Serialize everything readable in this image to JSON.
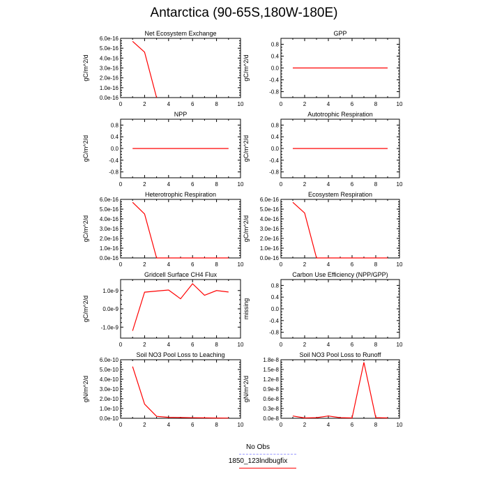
{
  "title": "Antarctica (90-65S,180W-180E)",
  "legend": [
    {
      "label": "No Obs",
      "color": "#9999ff",
      "dash": true
    },
    {
      "label": "1850_123lndbugfix",
      "color": "#ff0000",
      "dash": false
    }
  ],
  "chart_data": [
    {
      "type": "line",
      "title": "Net Ecosystem Exchange",
      "ylabel": "gC/m^2/d",
      "xlim": [
        0,
        10
      ],
      "ylim": [
        0,
        6e-16
      ],
      "xticks": [
        "0",
        "2",
        "4",
        "6",
        "8",
        "10"
      ],
      "yticks": [
        {
          "v": 0,
          "label": "0.0e-16"
        },
        {
          "v": 1e-16,
          "label": "1.0e-16"
        },
        {
          "v": 2e-16,
          "label": "2.0e-16"
        },
        {
          "v": 3e-16,
          "label": "3.0e-16"
        },
        {
          "v": 4e-16,
          "label": "4.0e-16"
        },
        {
          "v": 5e-16,
          "label": "5.0e-16"
        },
        {
          "v": 6e-16,
          "label": "6.0e-16"
        }
      ],
      "series": [
        {
          "x": [
            1,
            2,
            3
          ],
          "y": [
            5.7e-16,
            4.6e-16,
            0
          ]
        }
      ]
    },
    {
      "type": "line",
      "title": "GPP",
      "ylabel": "gC/m^2/d",
      "xlim": [
        0,
        10
      ],
      "ylim": [
        -1,
        1
      ],
      "xticks": [
        "0",
        "2",
        "4",
        "6",
        "8",
        "10"
      ],
      "yticks": [
        {
          "v": 0.8,
          "label": "0.8"
        },
        {
          "v": 0.4,
          "label": "0.4"
        },
        {
          "v": 0,
          "label": "0.0"
        },
        {
          "v": -0.4,
          "label": "-0.4"
        },
        {
          "v": -0.8,
          "label": "-0.8"
        }
      ],
      "series": [
        {
          "x": [
            1,
            9
          ],
          "y": [
            0,
            0
          ]
        }
      ]
    },
    {
      "type": "line",
      "title": "NPP",
      "ylabel": "gC/m^2/d",
      "xlim": [
        0,
        10
      ],
      "ylim": [
        -1,
        1
      ],
      "xticks": [
        "0",
        "2",
        "4",
        "6",
        "8",
        "10"
      ],
      "yticks": [
        {
          "v": 0.8,
          "label": "0.8"
        },
        {
          "v": 0.4,
          "label": "0.4"
        },
        {
          "v": 0,
          "label": "0.0"
        },
        {
          "v": -0.4,
          "label": "-0.4"
        },
        {
          "v": -0.8,
          "label": "-0.8"
        }
      ],
      "series": [
        {
          "x": [
            1,
            9
          ],
          "y": [
            0,
            0
          ]
        }
      ]
    },
    {
      "type": "line",
      "title": "Autotrophic Respiration",
      "ylabel": "gC/m^2/d",
      "xlim": [
        0,
        10
      ],
      "ylim": [
        -1,
        1
      ],
      "xticks": [
        "0",
        "2",
        "4",
        "6",
        "8",
        "10"
      ],
      "yticks": [
        {
          "v": 0.8,
          "label": "0.8"
        },
        {
          "v": 0.4,
          "label": "0.4"
        },
        {
          "v": 0,
          "label": "0.0"
        },
        {
          "v": -0.4,
          "label": "-0.4"
        },
        {
          "v": -0.8,
          "label": "-0.8"
        }
      ],
      "series": [
        {
          "x": [
            1,
            9
          ],
          "y": [
            0,
            0
          ]
        }
      ]
    },
    {
      "type": "line",
      "title": "Heterotrophic Respiration",
      "ylabel": "gC/m^2/d",
      "xlim": [
        0,
        10
      ],
      "ylim": [
        0,
        6e-16
      ],
      "xticks": [
        "0",
        "2",
        "4",
        "6",
        "8",
        "10"
      ],
      "yticks": [
        {
          "v": 0,
          "label": "0.0e-16"
        },
        {
          "v": 1e-16,
          "label": "1.0e-16"
        },
        {
          "v": 2e-16,
          "label": "2.0e-16"
        },
        {
          "v": 3e-16,
          "label": "3.0e-16"
        },
        {
          "v": 4e-16,
          "label": "4.0e-16"
        },
        {
          "v": 5e-16,
          "label": "5.0e-16"
        },
        {
          "v": 6e-16,
          "label": "6.0e-16"
        }
      ],
      "series": [
        {
          "x": [
            1,
            2,
            3,
            4,
            5,
            6,
            7,
            8,
            9
          ],
          "y": [
            5.7e-16,
            4.5e-16,
            0,
            0,
            0,
            0,
            0,
            0,
            0
          ]
        }
      ]
    },
    {
      "type": "line",
      "title": "Ecosystem Respiration",
      "ylabel": "gC/m^2/d",
      "xlim": [
        0,
        10
      ],
      "ylim": [
        0,
        6e-16
      ],
      "xticks": [
        "0",
        "2",
        "4",
        "6",
        "8",
        "10"
      ],
      "yticks": [
        {
          "v": 0,
          "label": "0.0e-16"
        },
        {
          "v": 1e-16,
          "label": "1.0e-16"
        },
        {
          "v": 2e-16,
          "label": "2.0e-16"
        },
        {
          "v": 3e-16,
          "label": "3.0e-16"
        },
        {
          "v": 4e-16,
          "label": "4.0e-16"
        },
        {
          "v": 5e-16,
          "label": "5.0e-16"
        },
        {
          "v": 6e-16,
          "label": "6.0e-16"
        }
      ],
      "series": [
        {
          "x": [
            1,
            2,
            3,
            4,
            5,
            6,
            7,
            8,
            9
          ],
          "y": [
            5.7e-16,
            4.6e-16,
            0,
            0,
            0,
            0,
            0,
            0,
            0
          ]
        }
      ]
    },
    {
      "type": "line",
      "title": "Gridcell Surface CH4 Flux",
      "ylabel": "gC/m^2/d",
      "xlim": [
        0,
        10
      ],
      "ylim": [
        -1.6e-09,
        1.6e-09
      ],
      "xticks": [
        "0",
        "2",
        "4",
        "6",
        "8",
        "10"
      ],
      "yticks": [
        {
          "v": 1e-09,
          "label": "1.0e-9"
        },
        {
          "v": 0,
          "label": "0.0e-9"
        },
        {
          "v": -1e-09,
          "label": "-1.0e-9"
        }
      ],
      "series": [
        {
          "x": [
            1,
            2,
            3,
            4,
            5,
            6,
            7,
            8,
            9
          ],
          "y": [
            -1.2e-09,
            9.1e-10,
            9.7e-10,
            1.03e-09,
            5.5e-10,
            1.37e-09,
            7.4e-10,
            1e-09,
            9.2e-10
          ]
        }
      ]
    },
    {
      "type": "line",
      "title": "Carbon Use Efficiency (NPP/GPP)",
      "ylabel": "missing",
      "xlim": [
        0,
        10
      ],
      "ylim": [
        -1,
        1
      ],
      "xticks": [
        "0",
        "2",
        "4",
        "6",
        "8",
        "10"
      ],
      "yticks": [
        {
          "v": 0.8,
          "label": "0.8"
        },
        {
          "v": 0.4,
          "label": "0.4"
        },
        {
          "v": 0,
          "label": "0.0"
        },
        {
          "v": -0.4,
          "label": "-0.4"
        },
        {
          "v": -0.8,
          "label": "-0.8"
        }
      ],
      "series": []
    },
    {
      "type": "line",
      "title": "Soil NO3 Pool Loss to Leaching",
      "ylabel": "gN/m^2/d",
      "xlim": [
        0,
        10
      ],
      "ylim": [
        0,
        6e-10
      ],
      "xticks": [
        "0",
        "2",
        "4",
        "6",
        "8",
        "10"
      ],
      "yticks": [
        {
          "v": 0,
          "label": "0.0e-10"
        },
        {
          "v": 1e-10,
          "label": "1.0e-10"
        },
        {
          "v": 2e-10,
          "label": "2.0e-10"
        },
        {
          "v": 3e-10,
          "label": "3.0e-10"
        },
        {
          "v": 4e-10,
          "label": "4.0e-10"
        },
        {
          "v": 5e-10,
          "label": "5.0e-10"
        },
        {
          "v": 6e-10,
          "label": "6.0e-10"
        }
      ],
      "series": [
        {
          "x": [
            1,
            2,
            3,
            4,
            5,
            6,
            7,
            8,
            9
          ],
          "y": [
            5.3e-10,
            1.45e-10,
            2e-11,
            1e-11,
            8e-12,
            6e-12,
            4e-12,
            3e-12,
            2e-12
          ]
        }
      ]
    },
    {
      "type": "line",
      "title": "Soil NO3 Pool Loss to Runoff",
      "ylabel": "gN/m^2/d",
      "xlim": [
        0,
        10
      ],
      "ylim": [
        0,
        1.8e-08
      ],
      "xticks": [
        "0",
        "2",
        "4",
        "6",
        "8",
        "10"
      ],
      "yticks": [
        {
          "v": 0,
          "label": "0.0e-8"
        },
        {
          "v": 3e-09,
          "label": "0.3e-8"
        },
        {
          "v": 6e-09,
          "label": "0.6e-8"
        },
        {
          "v": 9e-09,
          "label": "0.9e-8"
        },
        {
          "v": 1.2e-08,
          "label": "1.2e-8"
        },
        {
          "v": 1.5e-08,
          "label": "1.5e-8"
        },
        {
          "v": 1.8e-08,
          "label": "1.8e-8"
        }
      ],
      "series": [
        {
          "x": [
            1,
            2,
            3,
            4,
            5,
            6,
            7,
            8,
            9
          ],
          "y": [
            7e-10,
            1e-10,
            2e-10,
            7e-10,
            2e-10,
            1e-10,
            1.72e-08,
            2e-10,
            1e-10
          ]
        }
      ]
    }
  ]
}
